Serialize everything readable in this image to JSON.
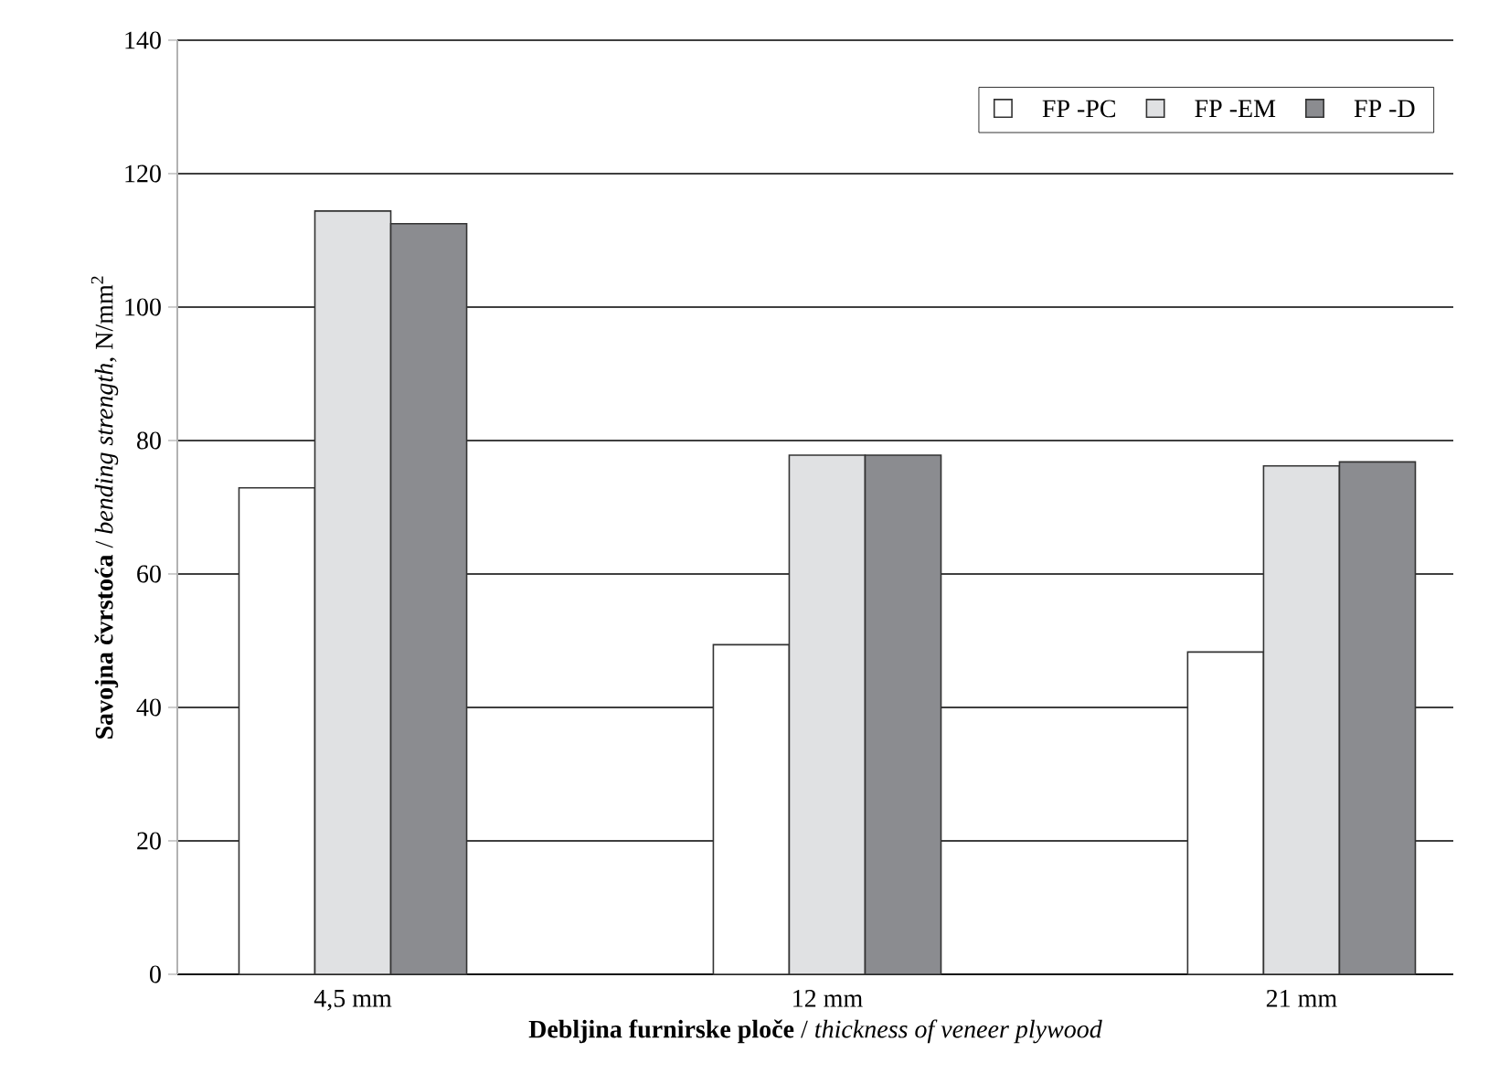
{
  "chart_data": {
    "type": "bar",
    "xlabel": "**Debljina furnirske ploče** / *thickness of veneer plywood*",
    "ylabel": "**Savojna čvrstoća** / *bending strength*, N/mm$^{2}$",
    "categories": [
      "4,5 mm",
      "12 mm",
      "21 mm"
    ],
    "series": [
      {
        "name": "FP -PC",
        "color": "#ffffff",
        "values": [
          72.9,
          49.4,
          48.3
        ]
      },
      {
        "name": "FP -EM",
        "color": "#e0e1e3",
        "values": [
          114.4,
          77.8,
          76.2
        ]
      },
      {
        "name": "FP -D",
        "color": "#8b8c90",
        "values": [
          112.5,
          77.8,
          76.8
        ]
      }
    ],
    "ylim": [
      0,
      140
    ],
    "yticks": [
      0,
      20,
      40,
      60,
      80,
      100,
      120,
      140
    ],
    "grid": "y",
    "legend": "top right"
  }
}
